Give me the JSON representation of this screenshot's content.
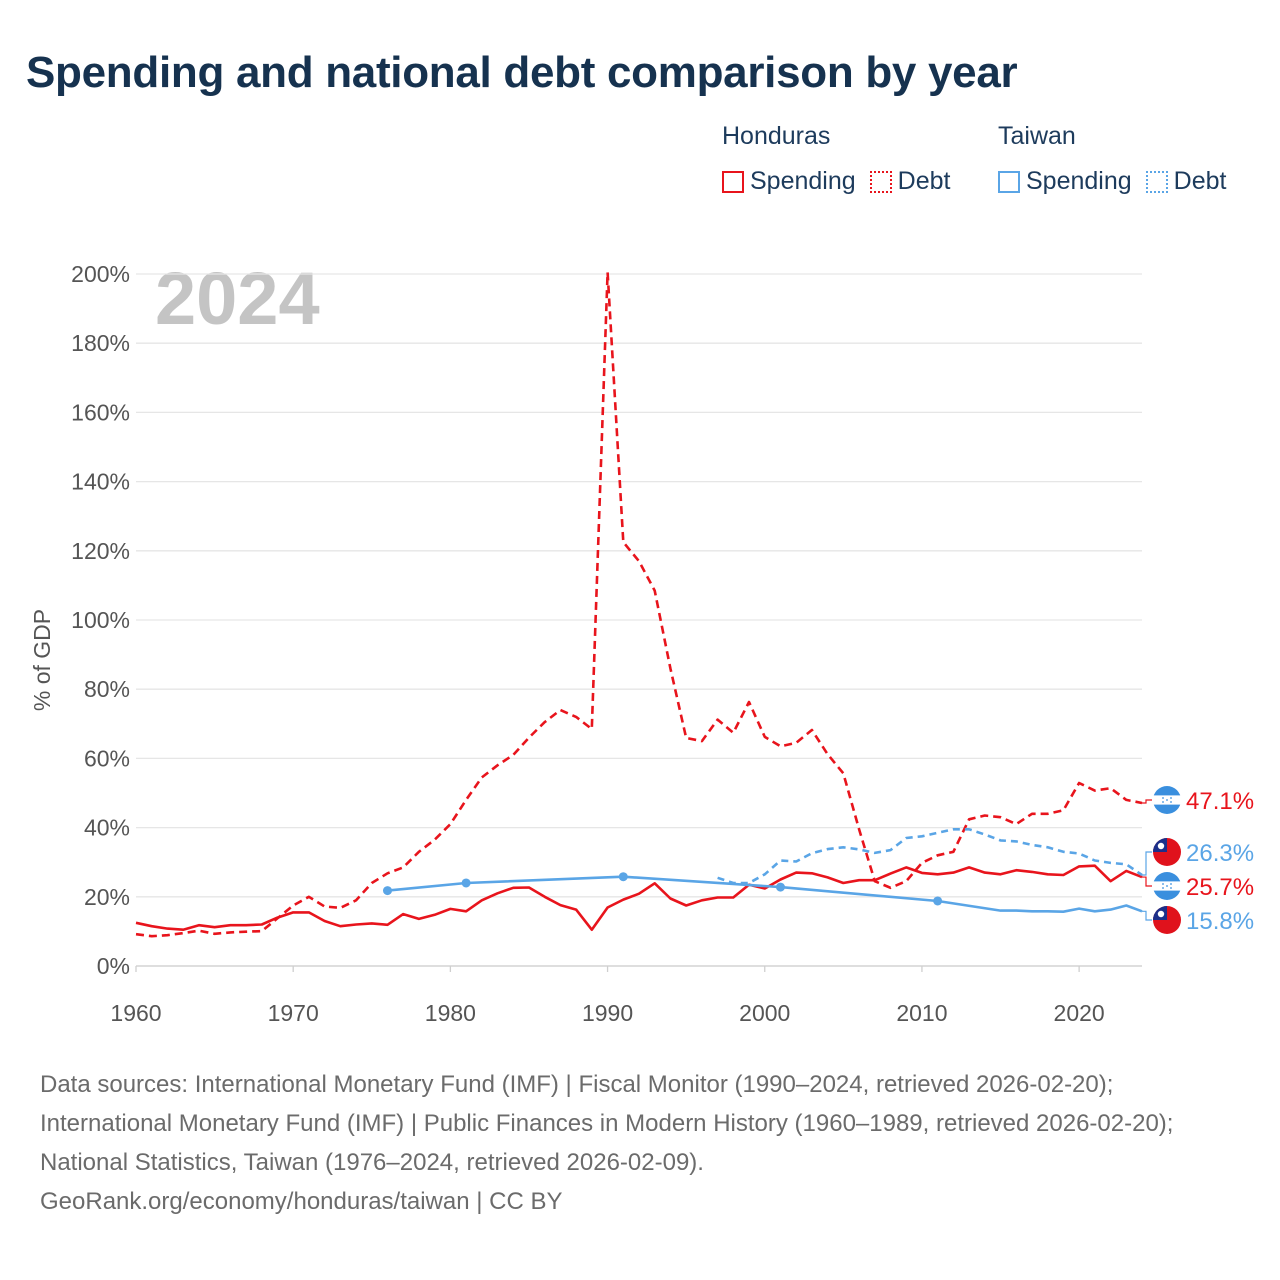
{
  "title": "Spending and national debt comparison by year",
  "legend": {
    "groups": [
      {
        "country": "Honduras",
        "color": "#e8141c",
        "items": [
          {
            "label": "Spending",
            "style": "solid"
          },
          {
            "label": "Debt",
            "style": "dotted"
          }
        ]
      },
      {
        "country": "Taiwan",
        "color": "#5aa5e6",
        "items": [
          {
            "label": "Spending",
            "style": "solid"
          },
          {
            "label": "Debt",
            "style": "dotted"
          }
        ]
      }
    ]
  },
  "colors": {
    "honduras": "#e8141c",
    "taiwan": "#5aa5e6",
    "grid": "#e6e6e6",
    "year_label": "#c4c4c4",
    "text": "#555555"
  },
  "chart_data": {
    "type": "line",
    "year_label": "2024",
    "ylabel": "% of GDP",
    "xlabel": "",
    "xlim": [
      1960,
      2024
    ],
    "ylim": [
      0,
      200
    ],
    "xticks": [
      1960,
      1970,
      1980,
      1990,
      2000,
      2010,
      2020
    ],
    "xtick_labels": [
      "1960",
      "1970",
      "1980",
      "1990",
      "2000",
      "2010",
      "2020"
    ],
    "yticks": [
      0,
      20,
      40,
      60,
      80,
      100,
      120,
      140,
      160,
      180,
      200
    ],
    "ytick_labels": [
      "0%",
      "20%",
      "40%",
      "60%",
      "80%",
      "100%",
      "120%",
      "140%",
      "160%",
      "180%",
      "200%"
    ],
    "series": [
      {
        "name": "Honduras Spending",
        "country": "honduras",
        "metric": "spending",
        "style": "solid",
        "x": [
          1960,
          1961,
          1962,
          1963,
          1964,
          1965,
          1966,
          1967,
          1968,
          1969,
          1970,
          1971,
          1972,
          1973,
          1974,
          1975,
          1976,
          1977,
          1978,
          1979,
          1980,
          1981,
          1982,
          1983,
          1984,
          1985,
          1986,
          1987,
          1988,
          1989,
          1990,
          1991,
          1992,
          1993,
          1994,
          1995,
          1996,
          1997,
          1998,
          1999,
          2000,
          2001,
          2002,
          2003,
          2004,
          2005,
          2006,
          2007,
          2008,
          2009,
          2010,
          2011,
          2012,
          2013,
          2014,
          2015,
          2016,
          2017,
          2018,
          2019,
          2020,
          2021,
          2022,
          2023,
          2024
        ],
        "values": [
          12.5,
          11.5,
          10.8,
          10.5,
          11.8,
          11.2,
          11.8,
          11.8,
          12.0,
          14.0,
          15.5,
          15.5,
          13.0,
          11.5,
          12.0,
          12.3,
          11.9,
          15.0,
          13.6,
          14.8,
          16.5,
          15.8,
          19.0,
          21.0,
          22.6,
          22.7,
          20.0,
          17.6,
          16.3,
          10.5,
          16.9,
          19.2,
          20.9,
          23.9,
          19.5,
          17.5,
          19.0,
          19.8,
          19.8,
          23.5,
          22.4,
          25.0,
          27.0,
          26.8,
          25.6,
          24.0,
          24.8,
          24.8,
          26.7,
          28.5,
          26.9,
          26.5,
          27.0,
          28.5,
          27.0,
          26.5,
          27.7,
          27.2,
          26.5,
          26.3,
          28.8,
          29.0,
          24.5,
          27.5,
          25.7
        ]
      },
      {
        "name": "Honduras Debt",
        "country": "honduras",
        "metric": "debt",
        "style": "dashed",
        "x": [
          1960,
          1961,
          1962,
          1963,
          1964,
          1965,
          1966,
          1967,
          1968,
          1969,
          1970,
          1971,
          1972,
          1973,
          1974,
          1975,
          1976,
          1977,
          1978,
          1979,
          1980,
          1981,
          1982,
          1983,
          1984,
          1985,
          1986,
          1987,
          1988,
          1989,
          1990,
          1991,
          1992,
          1993,
          1994,
          1995,
          1996,
          1997,
          1998,
          1999,
          2000,
          2001,
          2002,
          2003,
          2004,
          2005,
          2006,
          2007,
          2008,
          2009,
          2010,
          2011,
          2012,
          2013,
          2014,
          2015,
          2016,
          2017,
          2018,
          2019,
          2020,
          2021,
          2022,
          2023,
          2024
        ],
        "values": [
          9.2,
          8.6,
          8.9,
          9.5,
          10.2,
          9.3,
          9.7,
          9.9,
          10.1,
          13.8,
          17.5,
          20.0,
          17.2,
          16.8,
          19.0,
          24.0,
          26.8,
          28.5,
          33.0,
          36.5,
          41.0,
          48.0,
          54.5,
          58.0,
          61.0,
          66.0,
          70.5,
          74.0,
          72.0,
          68.5,
          200.5,
          122.5,
          117.0,
          108.5,
          86.0,
          65.9,
          65.0,
          71.2,
          67.4,
          76.3,
          66.2,
          63.5,
          64.5,
          68.2,
          61.2,
          55.7,
          39.5,
          24.5,
          22.6,
          24.5,
          29.8,
          32.0,
          33.0,
          42.4,
          43.5,
          43.0,
          41.0,
          44.0,
          44.0,
          45.0,
          52.9,
          50.7,
          51.4,
          48.0,
          47.1
        ]
      },
      {
        "name": "Taiwan Spending",
        "country": "taiwan",
        "metric": "spending",
        "style": "solid",
        "x": [
          1976,
          1981,
          1991,
          2001,
          2011,
          2015,
          2016,
          2017,
          2018,
          2019,
          2020,
          2021,
          2022,
          2023,
          2024
        ],
        "values": [
          21.8,
          24.0,
          25.8,
          22.8,
          18.8,
          16.0,
          16.0,
          15.8,
          15.8,
          15.7,
          16.6,
          15.8,
          16.3,
          17.5,
          15.8
        ],
        "markers_x": [
          1976,
          1981,
          1991,
          2001,
          2011
        ]
      },
      {
        "name": "Taiwan Debt",
        "country": "taiwan",
        "metric": "debt",
        "style": "dashed",
        "x": [
          1997,
          1998,
          1999,
          2000,
          2001,
          2002,
          2003,
          2004,
          2005,
          2006,
          2007,
          2008,
          2009,
          2010,
          2011,
          2012,
          2013,
          2014,
          2015,
          2016,
          2017,
          2018,
          2019,
          2020,
          2021,
          2022,
          2023,
          2024
        ],
        "values": [
          25.5,
          24.0,
          24.0,
          26.5,
          30.5,
          30.2,
          32.6,
          33.8,
          34.3,
          33.7,
          32.7,
          33.5,
          37.0,
          37.5,
          38.5,
          39.5,
          39.5,
          38.0,
          36.3,
          36.0,
          35.0,
          34.3,
          33.0,
          32.5,
          30.5,
          29.8,
          29.4,
          26.3
        ]
      }
    ],
    "end_labels": [
      {
        "country": "honduras",
        "metric": "debt",
        "value": 47.1,
        "text": "47.1%",
        "flag": "honduras-flag-icon"
      },
      {
        "country": "taiwan",
        "metric": "debt",
        "value": 26.3,
        "text": "26.3%",
        "flag": "taiwan-flag-icon"
      },
      {
        "country": "honduras",
        "metric": "spending",
        "value": 25.7,
        "text": "25.7%",
        "flag": "honduras-flag-icon"
      },
      {
        "country": "taiwan",
        "metric": "spending",
        "value": 15.8,
        "text": "15.8%",
        "flag": "taiwan-flag-icon"
      }
    ]
  },
  "source": {
    "text": "Data sources: International Monetary Fund (IMF) | Fiscal Monitor (1990–2024, retrieved 2026-02-20); International Monetary Fund (IMF) | Public Finances in Modern History (1960–1989, retrieved 2026-02-20); National Statistics, Taiwan (1976–2024, retrieved 2026-02-09).",
    "footer": "GeoRank.org/economy/honduras/taiwan | CC BY"
  }
}
